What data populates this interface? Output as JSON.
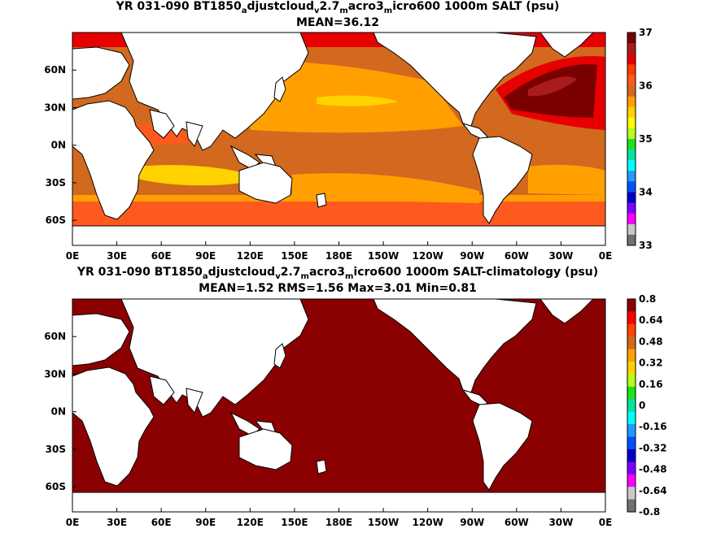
{
  "top_panel": {
    "title_parts": [
      "YR 031-090 BT1850",
      "a",
      "djustcloud",
      "v",
      "2.7",
      "m",
      "acro3",
      "m",
      "icro600 1000m SALT (psu)"
    ],
    "subtitle": "MEAN=36.12",
    "colorbar_labels": [
      "37",
      "36",
      "35",
      "34",
      "33"
    ],
    "colorbar_colors": [
      "#7a0000",
      "#a81c1c",
      "#e60000",
      "#ff3b00",
      "#ff5a1e",
      "#d2691e",
      "#ffa000",
      "#ffd200",
      "#ffff00",
      "#b4ff1e",
      "#1ee11e",
      "#00e6a0",
      "#00ffff",
      "#1e9bff",
      "#0050ff",
      "#0000c8",
      "#7a00ff",
      "#ff00ff",
      "#c8c8c8",
      "#707070"
    ],
    "ocean_bands": [
      {
        "name": "arctic",
        "color": "#e60000"
      },
      {
        "name": "north-atlantic-core",
        "color": "#7a0000"
      },
      {
        "name": "north-atlantic-rim",
        "color": "#a81c1c"
      },
      {
        "name": "north-pacific",
        "color": "#ffa000"
      },
      {
        "name": "pacific-subtropical-max",
        "color": "#ffd200"
      },
      {
        "name": "equatorial",
        "color": "#d2691e"
      },
      {
        "name": "indian-north",
        "color": "#ff5a1e"
      },
      {
        "name": "southern-subtropical",
        "color": "#ffa000"
      },
      {
        "name": "southern-ocean",
        "color": "#ff5a1e"
      }
    ]
  },
  "bottom_panel": {
    "title_parts": [
      "YR 031-090 BT1850",
      "a",
      "djustcloud",
      "v",
      "2.7",
      "m",
      "acro3",
      "m",
      "icro600 1000m SALT-climatology (psu)"
    ],
    "subtitle": "MEAN=1.52   RMS=1.56   Max=3.01   Min=0.81",
    "colorbar_labels": [
      "0.8",
      "0.64",
      "0.48",
      "0.32",
      "0.16",
      "0",
      "-0.16",
      "-0.32",
      "-0.48",
      "-0.64",
      "-0.8"
    ],
    "colorbar_colors": [
      "#8b0000",
      "#ff0000",
      "#ff4500",
      "#d2691e",
      "#ffa000",
      "#ffd200",
      "#b4ff1e",
      "#1ee11e",
      "#00e6a0",
      "#00ffff",
      "#1e9bff",
      "#0050ff",
      "#0000c8",
      "#7a00ff",
      "#ff00ff",
      "#c8c8c8",
      "#707070"
    ],
    "ocean_color": "#8b0000"
  },
  "axes": {
    "lon_labels": [
      "0E",
      "30E",
      "60E",
      "90E",
      "120E",
      "150E",
      "180E",
      "150W",
      "120W",
      "90W",
      "60W",
      "30W",
      "0E"
    ],
    "lat_labels": [
      "60N",
      "30N",
      "0N",
      "30S",
      "60S"
    ],
    "lon_range": [
      0,
      360
    ],
    "lat_range": [
      -80,
      90
    ]
  },
  "land_color": "#ffffff"
}
